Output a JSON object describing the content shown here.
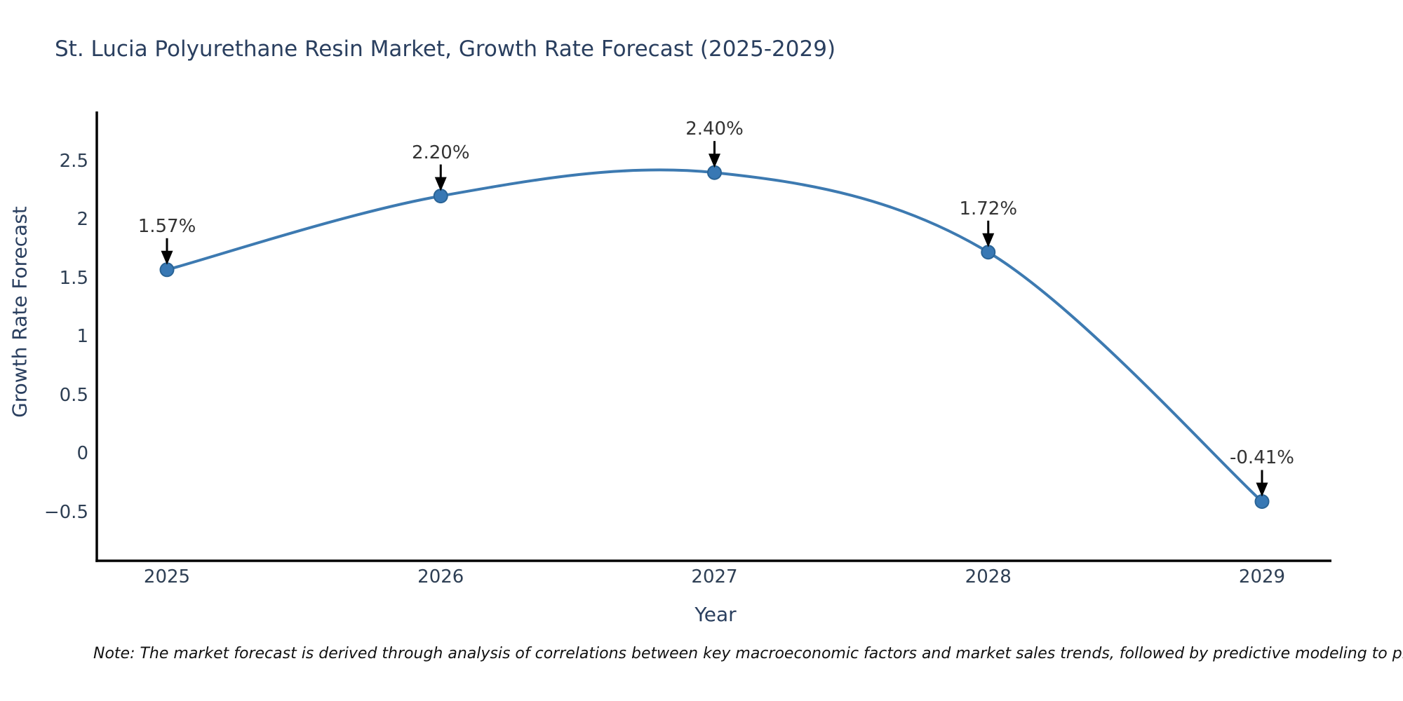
{
  "title": "St. Lucia Polyurethane Resin Market, Growth Rate Forecast (2025-2029)",
  "note": "Note: The market forecast is derived through analysis of correlations between key macroeconomic factors and market sales trends, followed by predictive modeling to project future sa",
  "chart_data": {
    "type": "line",
    "title": "St. Lucia Polyurethane Resin Market, Growth Rate Forecast (2025-2029)",
    "xlabel": "Year",
    "ylabel": "Growth Rate Forecast",
    "x": [
      2025,
      2026,
      2027,
      2028,
      2029
    ],
    "y": [
      1.57,
      2.2,
      2.4,
      1.72,
      -0.41
    ],
    "point_labels": [
      "1.57%",
      "2.20%",
      "2.40%",
      "1.72%",
      "-0.41%"
    ],
    "xtick_labels": [
      "2025",
      "2026",
      "2027",
      "2028",
      "2029"
    ],
    "ytick_values": [
      2.5,
      2,
      1.5,
      1,
      0.5,
      0,
      -0.5
    ],
    "ytick_labels": [
      "2.5",
      "2",
      "1.5",
      "1",
      "0.5",
      "0",
      "−0.5"
    ],
    "ylim": [
      -0.92,
      2.92
    ],
    "line_shape": "spline",
    "grid": false,
    "legend": "none",
    "colors": {
      "line": "#3d7ab1",
      "marker_fill": "#3878b4",
      "marker_edge": "#2a6496",
      "axis": "#000000",
      "title_text": "#2a3f5f",
      "tick_text": "#2e3f54",
      "annotation_text": "#333333",
      "arrow": "#000000",
      "background": "#ffffff"
    }
  }
}
